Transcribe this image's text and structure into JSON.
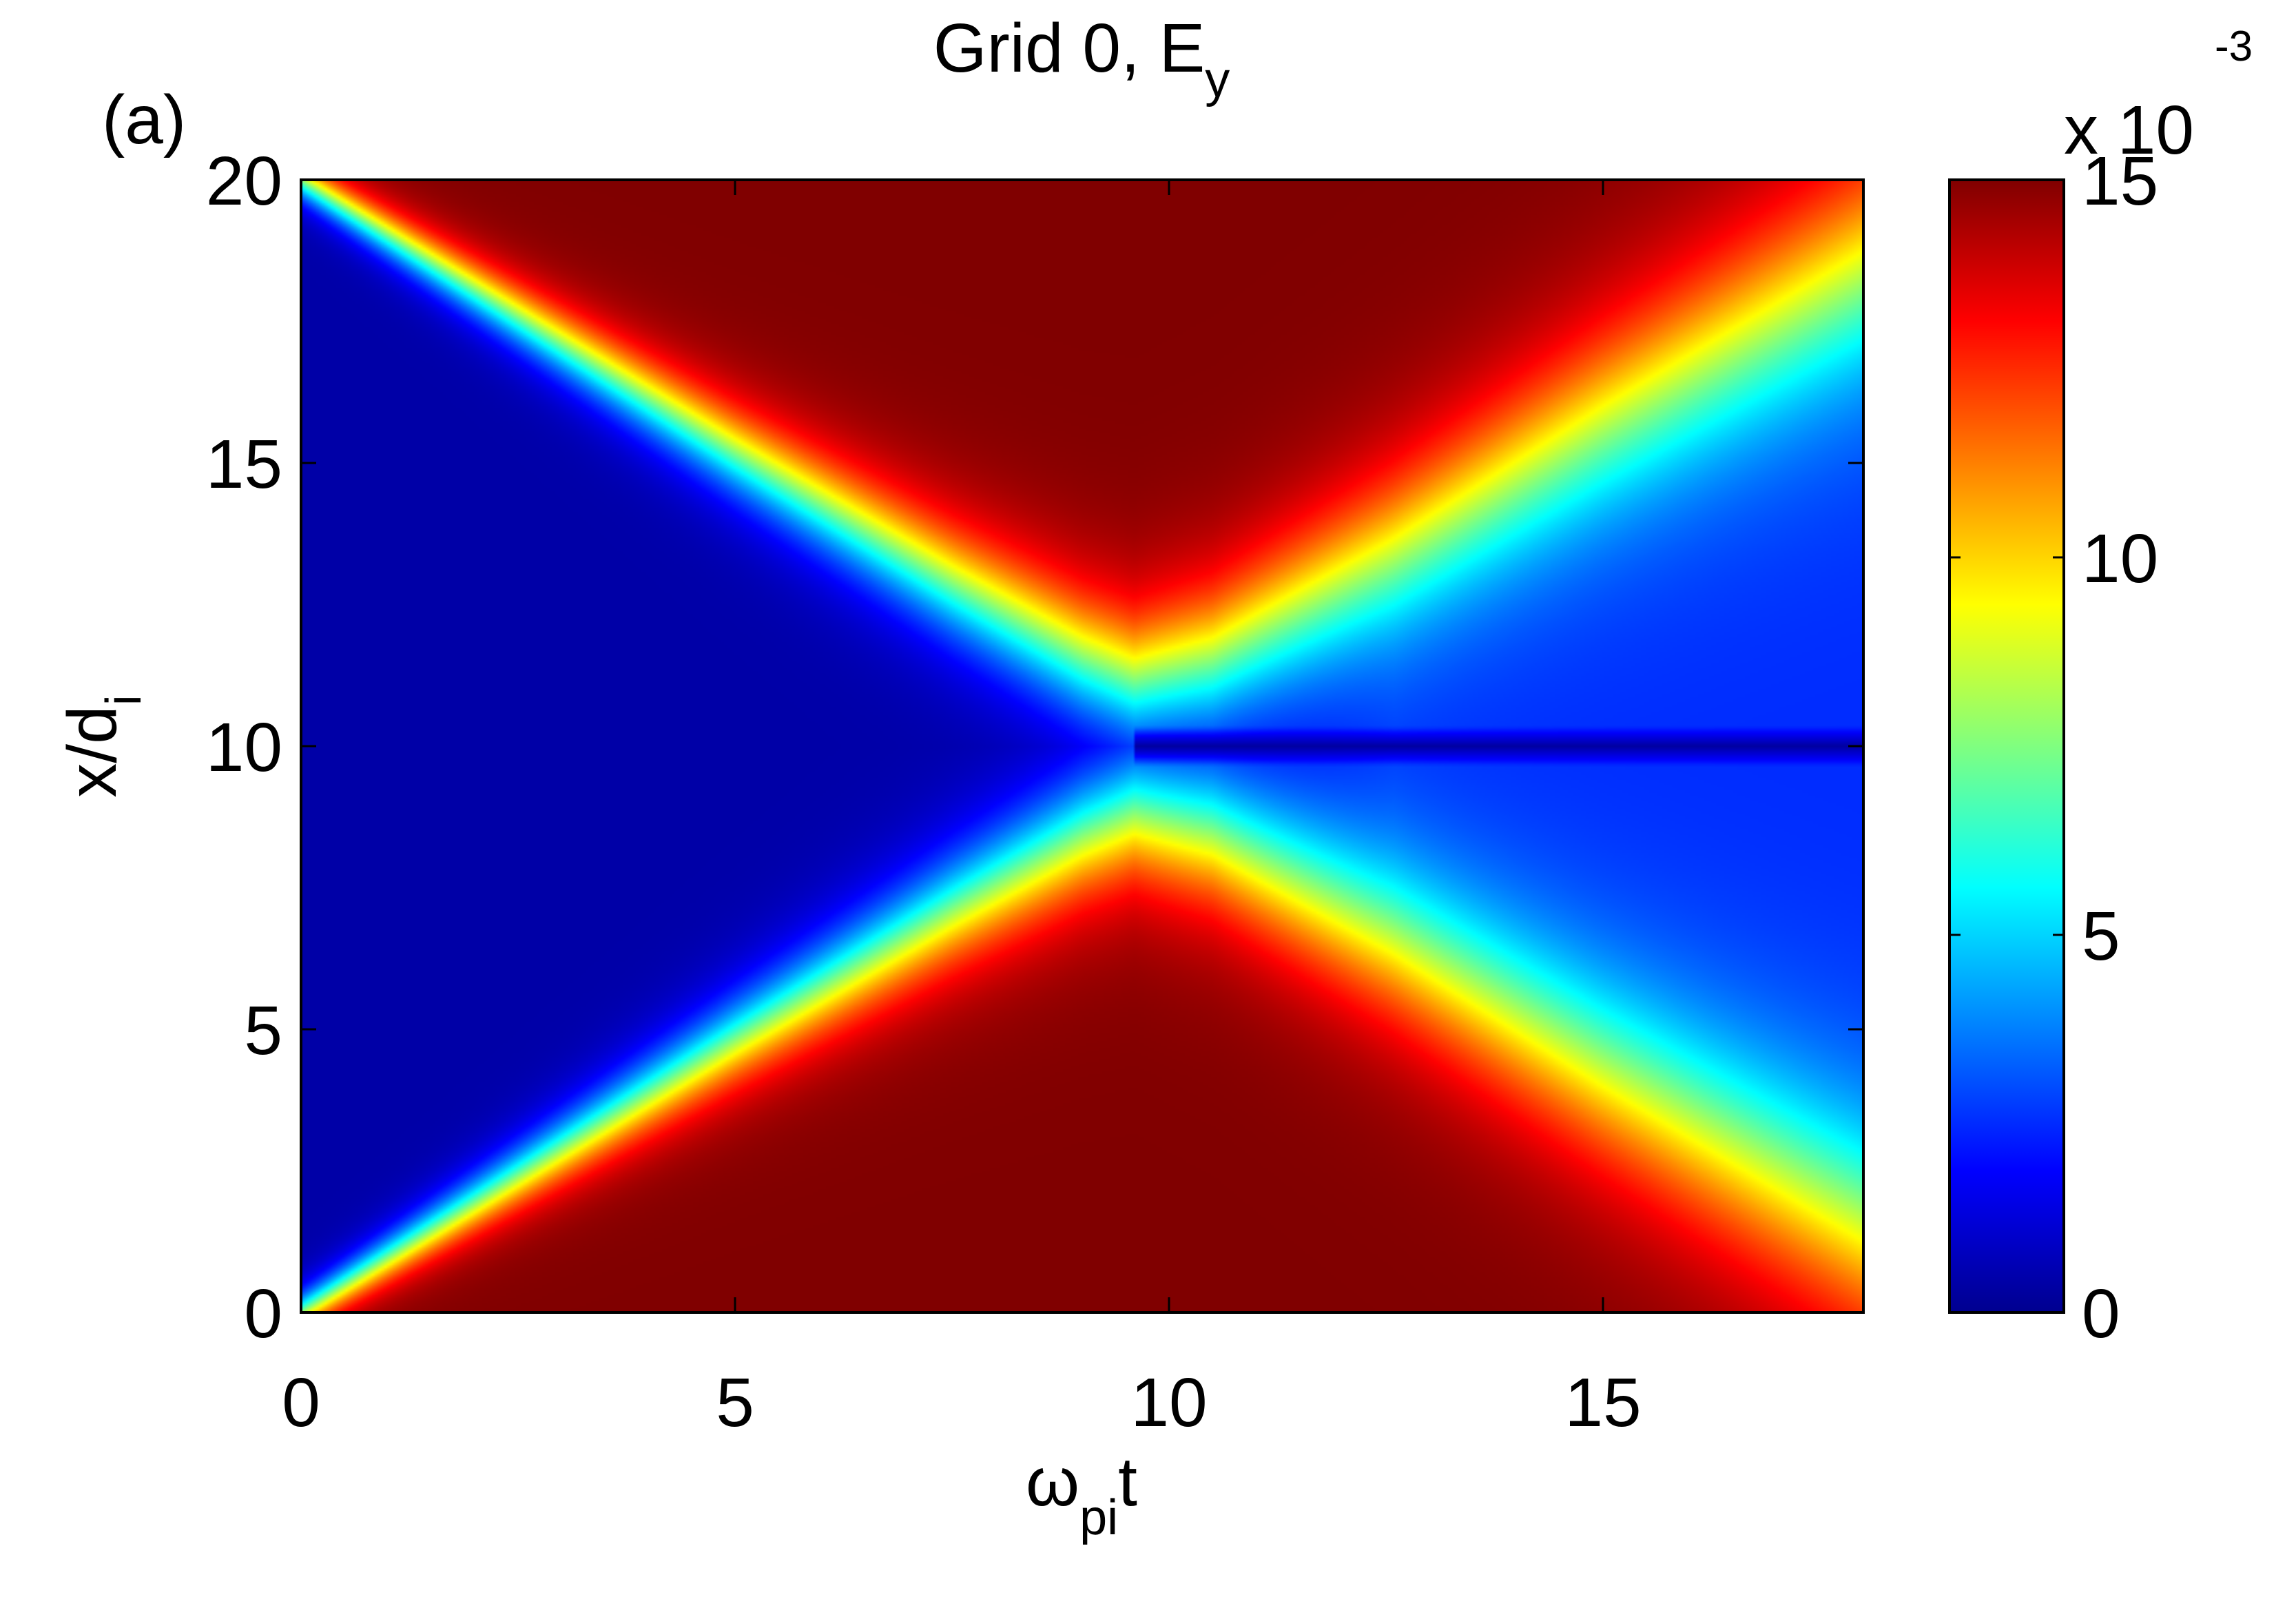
{
  "panel_label": "(a)",
  "chart_data": {
    "type": "heatmap",
    "title": {
      "main": "Grid 0, E",
      "subscript": "y"
    },
    "xlabel": {
      "main": "ω",
      "subscript": "pi",
      "suffix": "t"
    },
    "ylabel": {
      "main": "x/d",
      "subscript": "i"
    },
    "xlim": [
      0,
      18
    ],
    "ylim": [
      0,
      20
    ],
    "xticks": [
      0,
      5,
      10,
      15
    ],
    "yticks": [
      0,
      5,
      10,
      15,
      20
    ],
    "colorbar": {
      "colormap": "jet",
      "clim": [
        0,
        15
      ],
      "ticks": [
        0,
        5,
        10,
        15
      ],
      "multiplier": {
        "base": "x 10",
        "exponent": "-3"
      }
    },
    "features": {
      "fronts_upper": [
        [
          0,
          20
        ],
        [
          2.5,
          17.6
        ],
        [
          5,
          15.2
        ],
        [
          7.5,
          12.9
        ],
        [
          9,
          11.6
        ],
        [
          9.6,
          11.2
        ],
        [
          10.5,
          11.6
        ],
        [
          12.5,
          13.4
        ],
        [
          15,
          15.8
        ],
        [
          18,
          18.5
        ]
      ],
      "fronts_lower": [
        [
          0,
          0
        ],
        [
          2.5,
          2.4
        ],
        [
          5,
          4.8
        ],
        [
          7.5,
          7.1
        ],
        [
          9,
          8.4
        ],
        [
          9.6,
          8.8
        ],
        [
          10.5,
          8.4
        ],
        [
          12.5,
          6.6
        ],
        [
          15,
          4.2
        ],
        [
          18,
          1.5
        ]
      ],
      "values": {
        "inside_region": 15,
        "outside_region": 0.4,
        "late_time_wing": 2.5,
        "center_line": 0.3
      },
      "center_line_y": 10
    },
    "grid": false
  },
  "colors": {
    "jet": [
      "#00008f",
      "#0000ff",
      "#00ffff",
      "#ffff00",
      "#ff0000",
      "#800000"
    ]
  }
}
